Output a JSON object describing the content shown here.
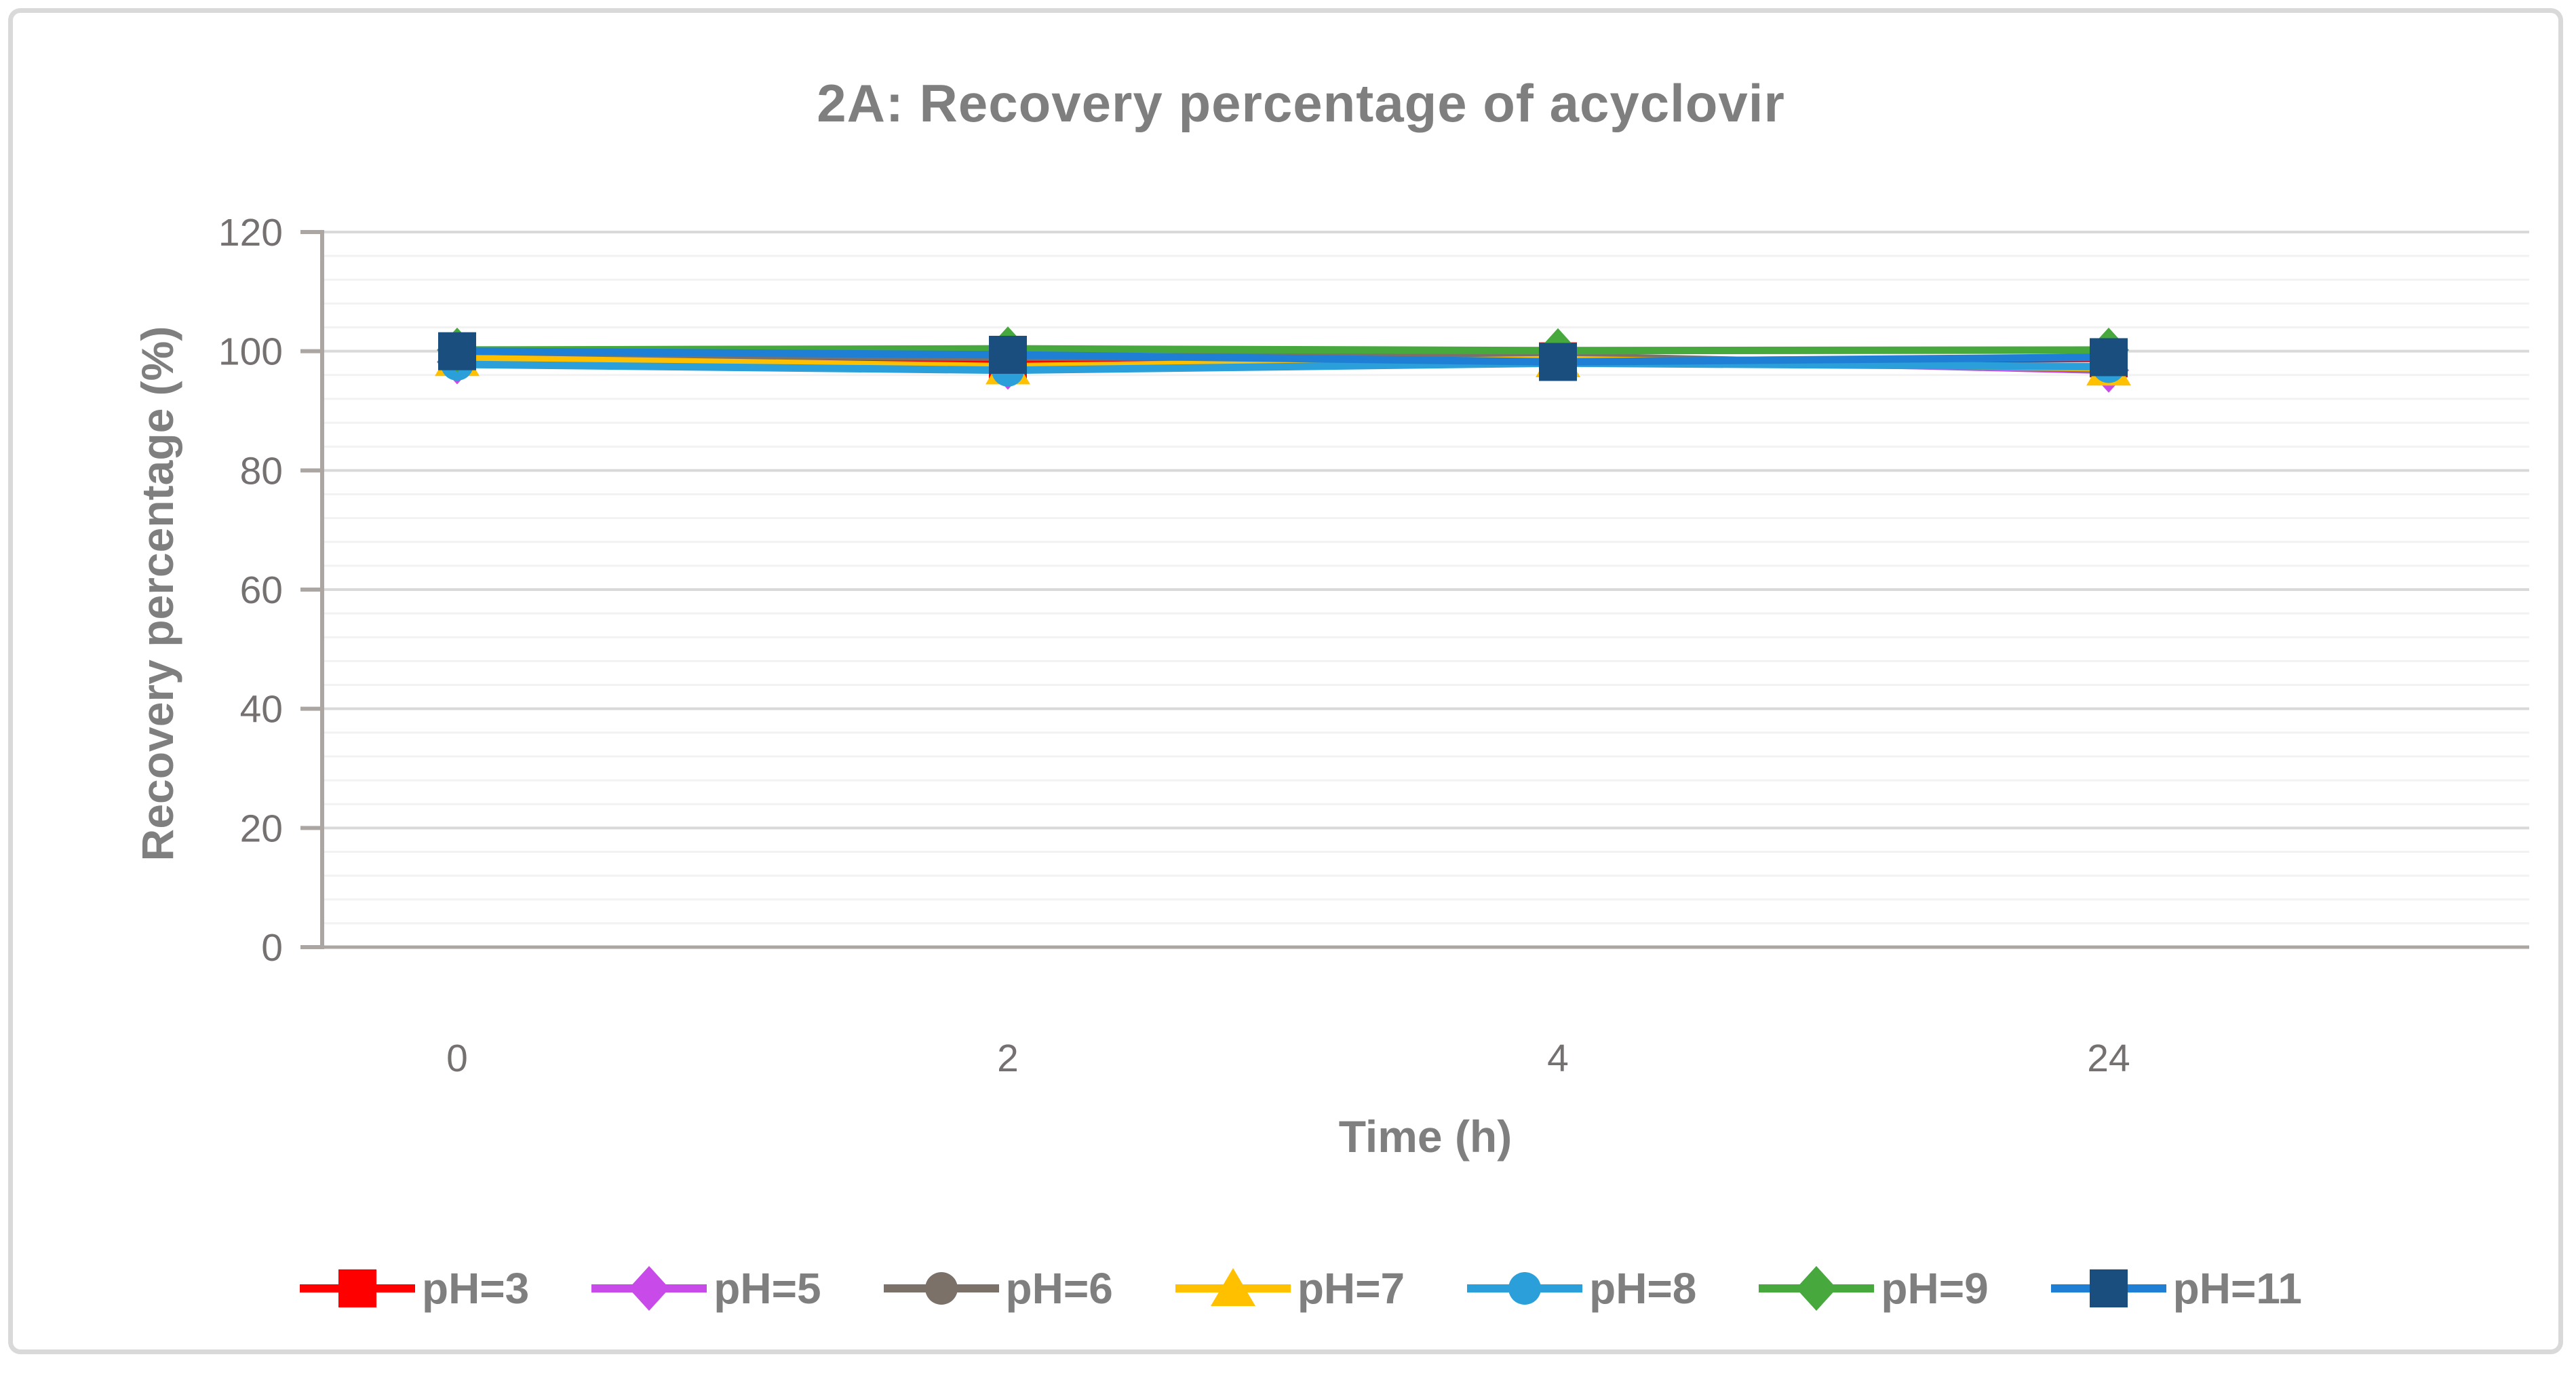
{
  "figure": {
    "border_color": "#d9d9d9",
    "background": "#ffffff"
  },
  "styles": {
    "title_color": "#7f7f7f",
    "tick_label_color": "#767171",
    "grid_major_color": "#d9d9d9",
    "grid_minor_color": "#f2f2f2",
    "axis_line_color": "#aca6a3",
    "legend_text_color": "#7f7f7f"
  },
  "chart_data": {
    "type": "line",
    "title": "2A: Recovery percentage of acyclovir",
    "xlabel": "Time (h)",
    "ylabel": "Recovery percentage (%)",
    "categories": [
      "0",
      "2",
      "4",
      "24"
    ],
    "ylim": [
      0,
      120
    ],
    "yticks": [
      0,
      20,
      40,
      60,
      80,
      100,
      120
    ],
    "minor_unit": 4,
    "grid": true,
    "legend_position": "bottom",
    "series": [
      {
        "name": "pH=3",
        "marker": "square",
        "color": "#ff0000",
        "line_color": "#ff0000",
        "values": [
          99.8,
          97.8,
          98.3,
          98.8
        ]
      },
      {
        "name": "pH=5",
        "marker": "diamond",
        "color": "#c84ae9",
        "line_color": "#c84ae9",
        "values": [
          98.2,
          97.3,
          99.0,
          96.8
        ]
      },
      {
        "name": "pH=6",
        "marker": "circle",
        "color": "#7b7168",
        "line_color": "#7b7168",
        "values": [
          99.4,
          99.0,
          99.2,
          97.0
        ]
      },
      {
        "name": "pH=7",
        "marker": "triangle",
        "color": "#ffc000",
        "line_color": "#ffc000",
        "values": [
          98.8,
          97.4,
          98.6,
          97.2
        ]
      },
      {
        "name": "pH=8",
        "marker": "circle",
        "color": "#2b9fd9",
        "line_color": "#2b9fd9",
        "values": [
          97.8,
          96.8,
          98.0,
          97.4
        ]
      },
      {
        "name": "pH=9",
        "marker": "diamond",
        "color": "#47a83e",
        "line_color": "#47a83e",
        "values": [
          100.2,
          100.4,
          100.1,
          100.2
        ]
      },
      {
        "name": "pH=11",
        "marker": "square",
        "color": "#1a4e7e",
        "line_color": "#1f7fd4",
        "values": [
          100.0,
          99.4,
          98.2,
          99.0
        ]
      }
    ]
  }
}
